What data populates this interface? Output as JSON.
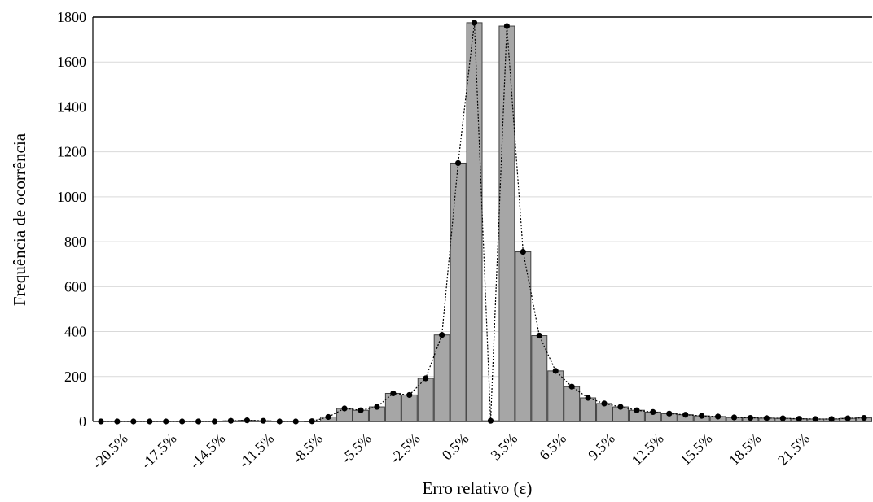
{
  "chart_data": {
    "type": "bar",
    "title": "",
    "xlabel": "Erro relativo (ε)",
    "ylabel": "Frequência de ocorrência",
    "ylim": [
      0,
      1800
    ],
    "yticks": [
      "0",
      "200",
      "400",
      "600",
      "800",
      "1000",
      "1200",
      "1400",
      "1600",
      "1800"
    ],
    "grid": true,
    "legend": "none",
    "colors": {
      "bar_fill": "#a6a6a6",
      "bar_stroke": "#404040",
      "line": "#000000",
      "grid": "#d9d9d9"
    },
    "bin_start": -22.5,
    "bin_step": 1,
    "xtick_labels": [
      {
        "x": -20.5,
        "label": "-20.5%"
      },
      {
        "x": -17.5,
        "label": "-17.5%"
      },
      {
        "x": -14.5,
        "label": "-14.5%"
      },
      {
        "x": -11.5,
        "label": "-11.5%"
      },
      {
        "x": -8.5,
        "label": "-8.5%"
      },
      {
        "x": -5.5,
        "label": "-5.5%"
      },
      {
        "x": -2.5,
        "label": "-2.5%"
      },
      {
        "x": 0.5,
        "label": "0.5%"
      },
      {
        "x": 3.5,
        "label": "3.5%"
      },
      {
        "x": 6.5,
        "label": "6.5%"
      },
      {
        "x": 9.5,
        "label": "9.5%"
      },
      {
        "x": 12.5,
        "label": "12.5%"
      },
      {
        "x": 15.5,
        "label": "15.5%"
      },
      {
        "x": 18.5,
        "label": "18.5%"
      },
      {
        "x": 21.5,
        "label": "21.5%"
      }
    ],
    "values": [
      0,
      0,
      0,
      0,
      0,
      0,
      0,
      0,
      3,
      5,
      3,
      0,
      0,
      1,
      20,
      58,
      50,
      65,
      125,
      118,
      192,
      385,
      1150,
      1775,
      3,
      1760,
      755,
      382,
      225,
      155,
      105,
      80,
      65,
      50,
      42,
      35,
      30,
      25,
      22,
      18,
      16,
      15,
      14,
      12,
      11,
      11,
      14,
      16
    ]
  }
}
